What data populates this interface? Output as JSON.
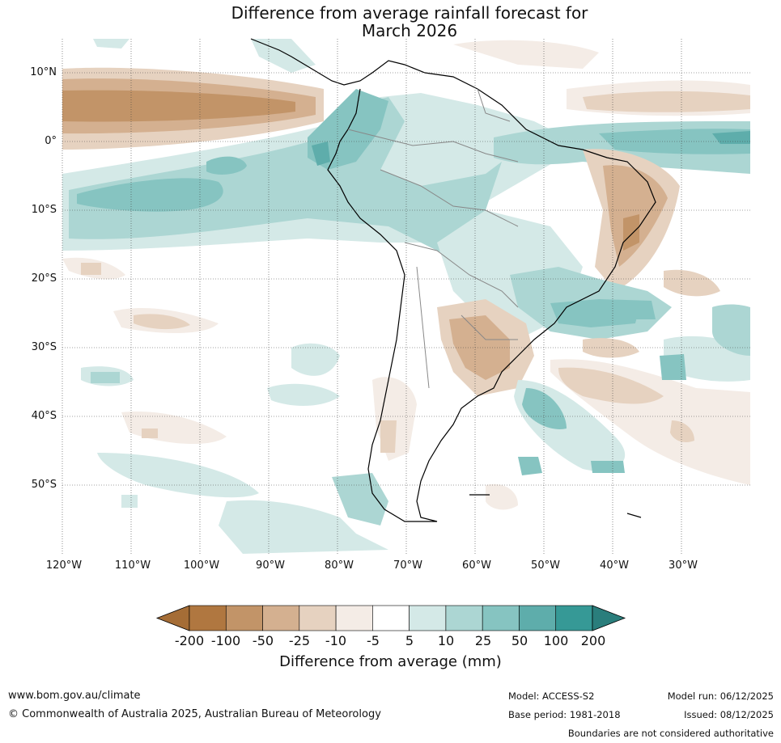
{
  "title": {
    "line1": "Difference from average rainfall forecast for",
    "line2": "March 2026"
  },
  "lat_labels": [
    "10°N",
    "0°",
    "10°S",
    "20°S",
    "30°S",
    "40°S",
    "50°S"
  ],
  "lon_labels": [
    "120°W",
    "110°W",
    "100°W",
    "90°W",
    "80°W",
    "70°W",
    "60°W",
    "50°W",
    "40°W",
    "30°W"
  ],
  "colorbar": {
    "ticks": [
      "-200",
      "-100",
      "-50",
      "-25",
      "-10",
      "-5",
      "5",
      "10",
      "25",
      "50",
      "100",
      "200"
    ],
    "colors": [
      "#a56d36",
      "#b07740",
      "#c29468",
      "#d4b090",
      "#e6d2c0",
      "#f4ece6",
      "#ffffff",
      "#d4e9e7",
      "#acd6d3",
      "#86c4c1",
      "#5eadab",
      "#369996",
      "#2a7e7c"
    ],
    "label": "Difference from average (mm)"
  },
  "footer": {
    "url": "www.bom.gov.au/climate",
    "copyright": "© Commonwealth of Australia 2025, Australian Bureau of Meteorology",
    "model": "Model: ACCESS-S2",
    "base_period": "Base period: 1981-2018",
    "model_run": "Model run: 06/12/2025",
    "issued": "Issued: 08/12/2025",
    "disclaimer": "Boundaries are not considered authoritative"
  }
}
